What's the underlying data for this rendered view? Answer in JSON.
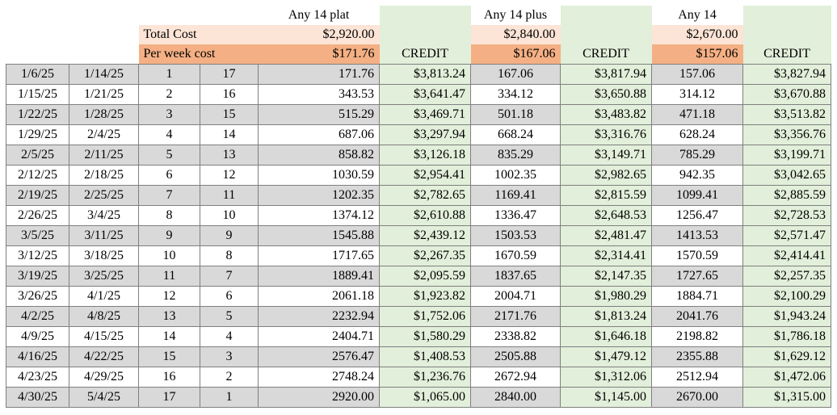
{
  "header": {
    "plans": [
      "Any 14 plat",
      "Any 14 plus",
      "Any 14"
    ],
    "total_cost_label": "Total Cost",
    "total_costs": [
      "$2,920.00",
      "$2,840.00",
      "$2,670.00"
    ],
    "per_week_label": "Per week cost",
    "per_week_costs": [
      "$171.76",
      "$167.06",
      "$157.06"
    ],
    "credit_label": "CREDIT"
  },
  "rows": [
    [
      "1/6/25",
      "1/14/25",
      "1",
      "17",
      "171.76",
      "$3,813.24",
      "167.06",
      "$3,817.94",
      "157.06",
      "$3,827.94"
    ],
    [
      "1/15/25",
      "1/21/25",
      "2",
      "16",
      "343.53",
      "$3,641.47",
      "334.12",
      "$3,650.88",
      "314.12",
      "$3,670.88"
    ],
    [
      "1/22/25",
      "1/28/25",
      "3",
      "15",
      "515.29",
      "$3,469.71",
      "501.18",
      "$3,483.82",
      "471.18",
      "$3,513.82"
    ],
    [
      "1/29/25",
      "2/4/25",
      "4",
      "14",
      "687.06",
      "$3,297.94",
      "668.24",
      "$3,316.76",
      "628.24",
      "$3,356.76"
    ],
    [
      "2/5/25",
      "2/11/25",
      "5",
      "13",
      "858.82",
      "$3,126.18",
      "835.29",
      "$3,149.71",
      "785.29",
      "$3,199.71"
    ],
    [
      "2/12/25",
      "2/18/25",
      "6",
      "12",
      "1030.59",
      "$2,954.41",
      "1002.35",
      "$2,982.65",
      "942.35",
      "$3,042.65"
    ],
    [
      "2/19/25",
      "2/25/25",
      "7",
      "11",
      "1202.35",
      "$2,782.65",
      "1169.41",
      "$2,815.59",
      "1099.41",
      "$2,885.59"
    ],
    [
      "2/26/25",
      "3/4/25",
      "8",
      "10",
      "1374.12",
      "$2,610.88",
      "1336.47",
      "$2,648.53",
      "1256.47",
      "$2,728.53"
    ],
    [
      "3/5/25",
      "3/11/25",
      "9",
      "9",
      "1545.88",
      "$2,439.12",
      "1503.53",
      "$2,481.47",
      "1413.53",
      "$2,571.47"
    ],
    [
      "3/12/25",
      "3/18/25",
      "10",
      "8",
      "1717.65",
      "$2,267.35",
      "1670.59",
      "$2,314.41",
      "1570.59",
      "$2,414.41"
    ],
    [
      "3/19/25",
      "3/25/25",
      "11",
      "7",
      "1889.41",
      "$2,095.59",
      "1837.65",
      "$2,147.35",
      "1727.65",
      "$2,257.35"
    ],
    [
      "3/26/25",
      "4/1/25",
      "12",
      "6",
      "2061.18",
      "$1,923.82",
      "2004.71",
      "$1,980.29",
      "1884.71",
      "$2,100.29"
    ],
    [
      "4/2/25",
      "4/8/25",
      "13",
      "5",
      "2232.94",
      "$1,752.06",
      "2171.76",
      "$1,813.24",
      "2041.76",
      "$1,943.24"
    ],
    [
      "4/9/25",
      "4/15/25",
      "14",
      "4",
      "2404.71",
      "$1,580.29",
      "2338.82",
      "$1,646.18",
      "2198.82",
      "$1,786.18"
    ],
    [
      "4/16/25",
      "4/22/25",
      "15",
      "3",
      "2576.47",
      "$1,408.53",
      "2505.88",
      "$1,479.12",
      "2355.88",
      "$1,629.12"
    ],
    [
      "4/23/25",
      "4/29/25",
      "16",
      "2",
      "2748.24",
      "$1,236.76",
      "2672.94",
      "$1,312.06",
      "2512.94",
      "$1,472.06"
    ],
    [
      "4/30/25",
      "5/4/25",
      "17",
      "1",
      "2920.00",
      "$1,065.00",
      "2840.00",
      "$1,145.00",
      "2670.00",
      "$1,315.00"
    ]
  ],
  "colors": {
    "header_total": "#fce4d6",
    "header_per_week": "#f4b084",
    "credit_column": "#e2efda",
    "alt_row": "#d9d9d9"
  }
}
